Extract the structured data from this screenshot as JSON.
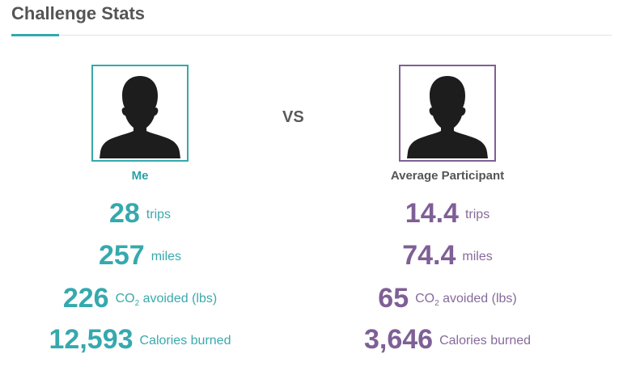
{
  "header": {
    "title": "Challenge Stats"
  },
  "colors": {
    "me": "#35a9ad",
    "average": "#7f5f96",
    "text": "#555555"
  },
  "vs_label": "VS",
  "me": {
    "label": "Me",
    "avatar_icon": "person-silhouette-icon",
    "stats": {
      "trips_value": "28",
      "trips_unit": "trips",
      "miles_value": "257",
      "miles_unit": "miles",
      "co2_value": "226",
      "co2_unit_pre": "CO",
      "co2_unit_sub": "2",
      "co2_unit_post": " avoided (lbs)",
      "calories_value": "12,593",
      "calories_unit": "Calories burned"
    }
  },
  "average": {
    "label": "Average Participant",
    "avatar_icon": "person-silhouette-icon",
    "stats": {
      "trips_value": "14.4",
      "trips_unit": "trips",
      "miles_value": "74.4",
      "miles_unit": "miles",
      "co2_value": "65",
      "co2_unit_pre": "CO",
      "co2_unit_sub": "2",
      "co2_unit_post": " avoided (lbs)",
      "calories_value": "3,646",
      "calories_unit": "Calories burned"
    }
  }
}
